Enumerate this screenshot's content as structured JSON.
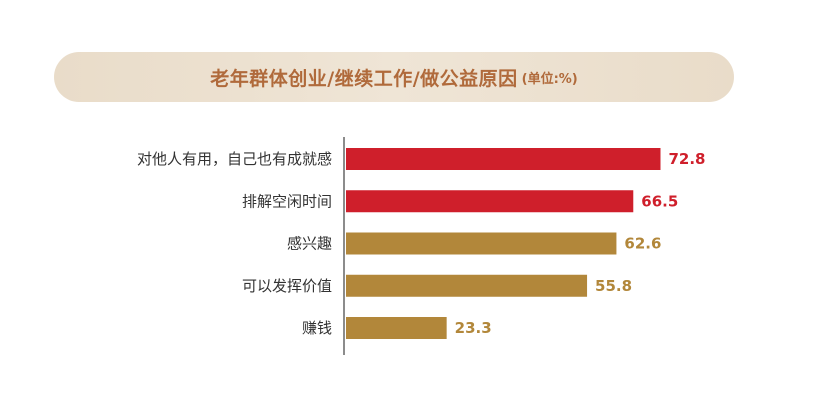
{
  "header": {
    "title": "老年群体创业/继续工作/做公益原因",
    "unit": "(单位:%)"
  },
  "colors": {
    "highlight_bar": "#cf1f2b",
    "normal_bar": "#b2873a",
    "axis": "#666666"
  },
  "chart_data": {
    "type": "bar",
    "orientation": "horizontal",
    "title": "老年群体创业/继续工作/做公益原因",
    "unit": "(单位:%)",
    "categories": [
      "对他人有用，自己也有成就感",
      "排解空闲时间",
      "感兴趣",
      "可以发挥价值",
      "赚钱"
    ],
    "values": [
      72.8,
      66.5,
      62.6,
      55.8,
      23.3
    ],
    "value_labels": [
      "72.8",
      "66.5",
      "62.6",
      "55.8",
      "23.3"
    ],
    "highlighted": [
      true,
      true,
      false,
      false,
      false
    ],
    "xlim": [
      0,
      80
    ],
    "grid": false,
    "legend": "none"
  }
}
